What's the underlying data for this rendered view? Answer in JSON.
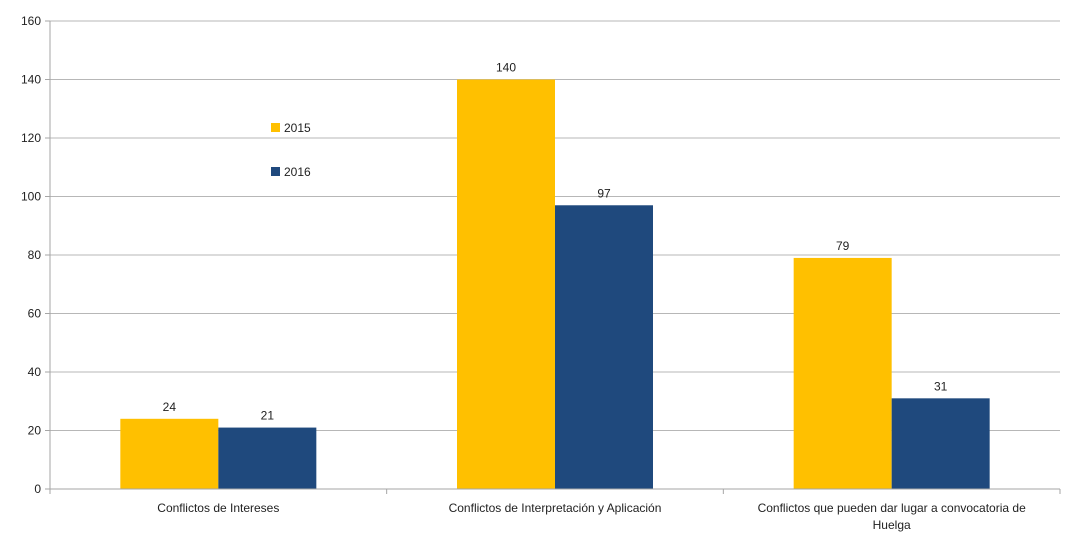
{
  "chart_data": {
    "type": "bar",
    "categories": [
      [
        "Conflictos de Intereses"
      ],
      [
        "Conflictos de Interpretación y Aplicación"
      ],
      [
        "Conflictos que pueden dar lugar a convocatoria de",
        "Huelga"
      ]
    ],
    "series": [
      {
        "name": "2015",
        "values": [
          24,
          140,
          79
        ],
        "color": "#FFC000"
      },
      {
        "name": "2016",
        "values": [
          21,
          97,
          31
        ],
        "color": "#1F497D"
      }
    ],
    "ylim": [
      0,
      160
    ],
    "yticks": [
      0,
      20,
      40,
      60,
      80,
      100,
      120,
      140,
      160
    ],
    "grid": true,
    "legend_position": "top-left",
    "data_labels": true,
    "gridline_color": "#b7b7b7",
    "axis_color": "#a6a6a6"
  }
}
